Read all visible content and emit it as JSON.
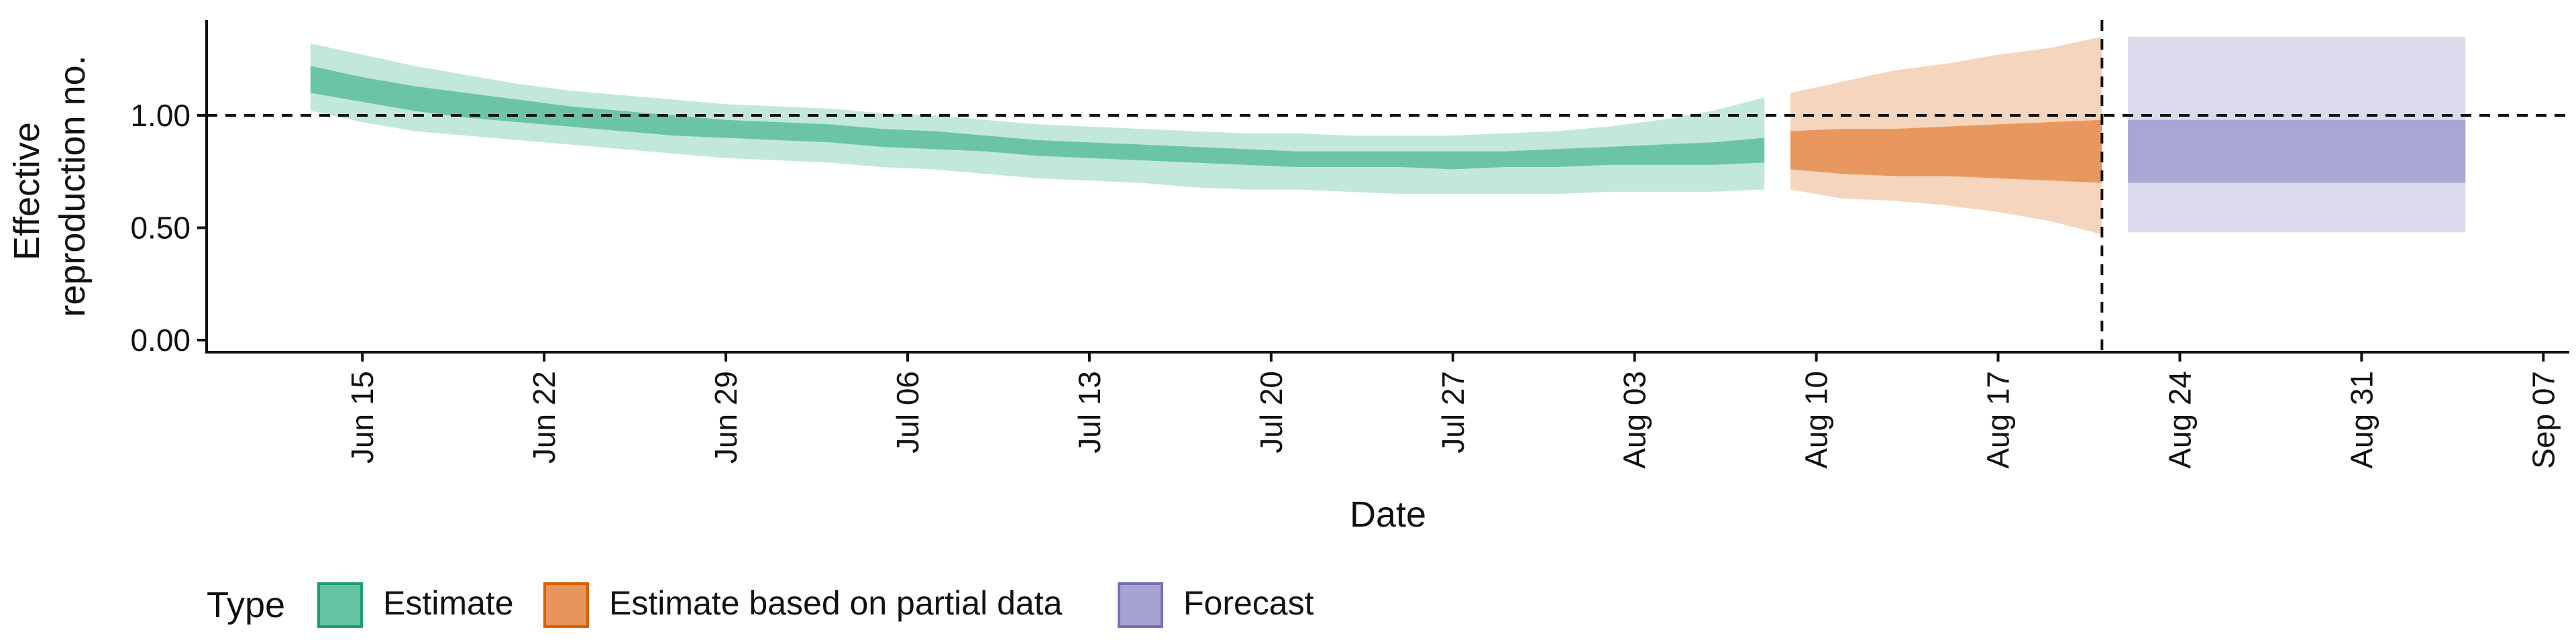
{
  "chart_data": {
    "type": "area",
    "title": "",
    "xlabel": "Date",
    "ylabel_lines": [
      "Effective",
      "reproduction no."
    ],
    "ylim": [
      0,
      1.4
    ],
    "y_ticks": [
      0.0,
      0.5,
      1.0
    ],
    "y_tick_labels": [
      "0.00",
      "0.50",
      "1.00"
    ],
    "x_range": [
      "2020-06-09",
      "2020-09-08"
    ],
    "x_ticks": [
      "2020-06-15",
      "2020-06-22",
      "2020-06-29",
      "2020-07-06",
      "2020-07-13",
      "2020-07-20",
      "2020-07-27",
      "2020-08-03",
      "2020-08-10",
      "2020-08-17",
      "2020-08-24",
      "2020-08-31",
      "2020-09-07"
    ],
    "x_tick_labels": [
      "Jun 15",
      "Jun 22",
      "Jun 29",
      "Jul 06",
      "Jul 13",
      "Jul 20",
      "Jul 27",
      "Aug 03",
      "Aug 10",
      "Aug 17",
      "Aug 24",
      "Aug 31",
      "Sep 07"
    ],
    "reference_hline": 1.0,
    "reference_vline": "2020-08-21",
    "grid": false,
    "legend_position": "bottom-left",
    "legend_title": "Type",
    "series": [
      {
        "name": "Estimate",
        "color": "#66c2a5",
        "stroke": "#1b9e77",
        "date": [
          "2020-06-13",
          "2020-06-15",
          "2020-06-17",
          "2020-06-19",
          "2020-06-21",
          "2020-06-23",
          "2020-06-25",
          "2020-06-27",
          "2020-06-29",
          "2020-07-01",
          "2020-07-03",
          "2020-07-05",
          "2020-07-07",
          "2020-07-09",
          "2020-07-11",
          "2020-07-13",
          "2020-07-15",
          "2020-07-17",
          "2020-07-19",
          "2020-07-21",
          "2020-07-23",
          "2020-07-25",
          "2020-07-27",
          "2020-07-29",
          "2020-07-31",
          "2020-08-02",
          "2020-08-04",
          "2020-08-06",
          "2020-08-08"
        ],
        "lower_90": [
          1.02,
          0.97,
          0.93,
          0.91,
          0.89,
          0.87,
          0.85,
          0.83,
          0.81,
          0.8,
          0.79,
          0.77,
          0.76,
          0.74,
          0.72,
          0.71,
          0.7,
          0.68,
          0.67,
          0.67,
          0.66,
          0.65,
          0.65,
          0.65,
          0.65,
          0.66,
          0.66,
          0.66,
          0.67
        ],
        "upper_90": [
          1.32,
          1.27,
          1.22,
          1.18,
          1.14,
          1.11,
          1.09,
          1.07,
          1.05,
          1.04,
          1.03,
          1.01,
          1.0,
          0.98,
          0.96,
          0.95,
          0.94,
          0.93,
          0.92,
          0.92,
          0.91,
          0.91,
          0.91,
          0.92,
          0.93,
          0.95,
          0.98,
          1.02,
          1.08
        ],
        "lower_50": [
          1.1,
          1.06,
          1.02,
          0.99,
          0.97,
          0.95,
          0.93,
          0.91,
          0.9,
          0.89,
          0.88,
          0.86,
          0.85,
          0.84,
          0.82,
          0.81,
          0.8,
          0.79,
          0.78,
          0.77,
          0.77,
          0.77,
          0.76,
          0.77,
          0.77,
          0.78,
          0.78,
          0.78,
          0.79
        ],
        "upper_50": [
          1.22,
          1.17,
          1.13,
          1.1,
          1.07,
          1.04,
          1.02,
          1.0,
          0.98,
          0.97,
          0.96,
          0.94,
          0.93,
          0.91,
          0.89,
          0.88,
          0.87,
          0.86,
          0.85,
          0.84,
          0.84,
          0.84,
          0.84,
          0.84,
          0.85,
          0.86,
          0.87,
          0.88,
          0.9
        ]
      },
      {
        "name": "Estimate based on partial data",
        "color": "#e7955a",
        "stroke": "#d95f02",
        "date": [
          "2020-08-09",
          "2020-08-11",
          "2020-08-13",
          "2020-08-15",
          "2020-08-17",
          "2020-08-19",
          "2020-08-21"
        ],
        "lower_90": [
          0.67,
          0.63,
          0.62,
          0.6,
          0.57,
          0.53,
          0.47
        ],
        "upper_90": [
          1.1,
          1.15,
          1.2,
          1.23,
          1.27,
          1.3,
          1.35
        ],
        "lower_50": [
          0.76,
          0.74,
          0.73,
          0.73,
          0.72,
          0.71,
          0.7
        ],
        "upper_50": [
          0.93,
          0.94,
          0.94,
          0.95,
          0.96,
          0.97,
          0.98
        ]
      },
      {
        "name": "Forecast",
        "color": "#a6a3d3",
        "stroke": "#7570b3",
        "date": [
          "2020-08-22",
          "2020-09-04"
        ],
        "lower_90": [
          0.48,
          0.48
        ],
        "upper_90": [
          1.35,
          1.35
        ],
        "lower_50": [
          0.7,
          0.7
        ],
        "upper_50": [
          0.98,
          0.98
        ]
      }
    ]
  }
}
